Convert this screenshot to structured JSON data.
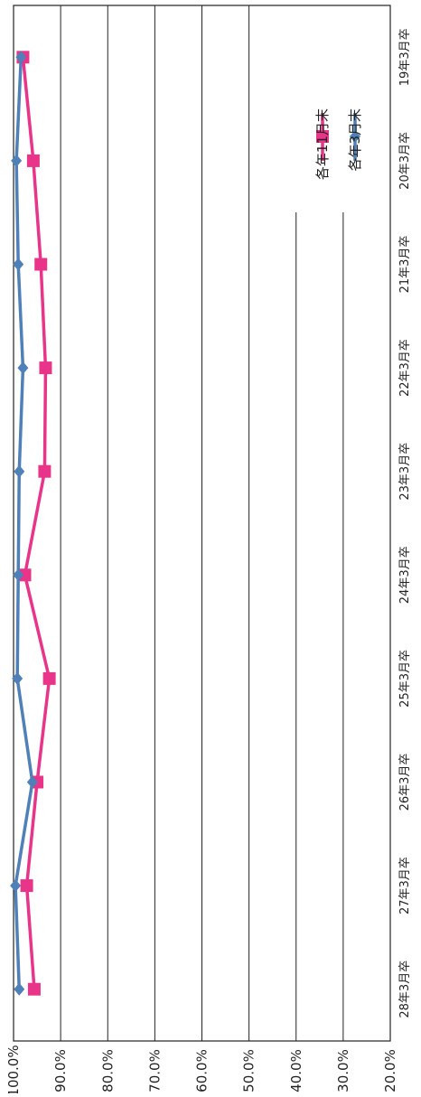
{
  "chart_data": {
    "type": "line",
    "orientation": "rotated-90-clockwise",
    "title": "",
    "categories": [
      "19年3月卒",
      "20年3月卒",
      "21年3月卒",
      "22年3月卒",
      "23年3月卒",
      "24年3月卒",
      "25年3月卒",
      "26年3月卒",
      "27年3月卒",
      "28年3月卒"
    ],
    "y_tick_labels": [
      "100.0%",
      "90.0%",
      "80.0%",
      "70.0%",
      "60.0%",
      "50.0%",
      "40.0%",
      "30.0%",
      "20.0%"
    ],
    "ylim": [
      20,
      100
    ],
    "grid": true,
    "legend_position": "top-right",
    "series": [
      {
        "name": "各年11月末",
        "color": "#e8358a",
        "marker": "square",
        "values": [
          98.0,
          95.8,
          94.2,
          93.2,
          93.4,
          97.6,
          92.4,
          95.0,
          97.2,
          95.6
        ]
      },
      {
        "name": "各年3月末",
        "color": "#4f80b8",
        "marker": "diamond",
        "values": [
          98.4,
          99.4,
          99.0,
          98.0,
          98.8,
          99.0,
          99.2,
          96.0,
          99.6,
          98.8
        ]
      }
    ]
  }
}
